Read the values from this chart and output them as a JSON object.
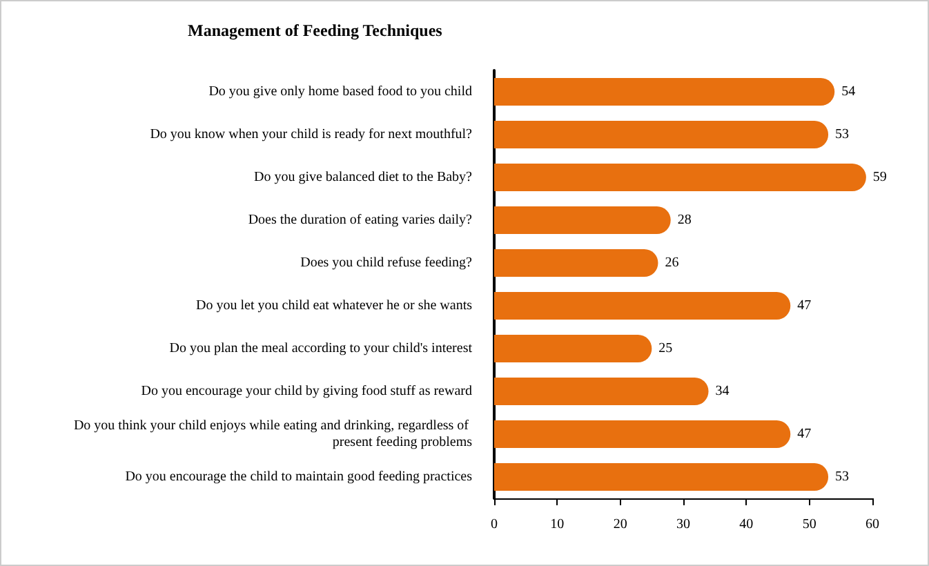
{
  "chart_data": {
    "type": "bar",
    "orientation": "horizontal",
    "title": "Management of Feeding Techniques",
    "categories": [
      "Do you give only home based food to you child",
      "Do you know when your child is ready for next mouthful?",
      "Do you give balanced diet to the Baby?",
      "Does the duration of eating varies daily?",
      "Does you child refuse feeding?",
      "Do you let you child eat whatever he or she wants",
      "Do you plan the meal according to your child's interest",
      "Do you encourage your child by giving food stuff as reward",
      "Do you think your child enjoys while eating and drinking, regardless of present feeding problems",
      "Do you encourage the child to maintain good feeding practices"
    ],
    "values": [
      54,
      53,
      59,
      28,
      26,
      47,
      25,
      34,
      47,
      53
    ],
    "color": "#e8700f",
    "xlim": [
      0,
      60
    ],
    "xticks": [
      0,
      10,
      20,
      30,
      40,
      50,
      60
    ],
    "data_labels": true,
    "grid": false
  }
}
